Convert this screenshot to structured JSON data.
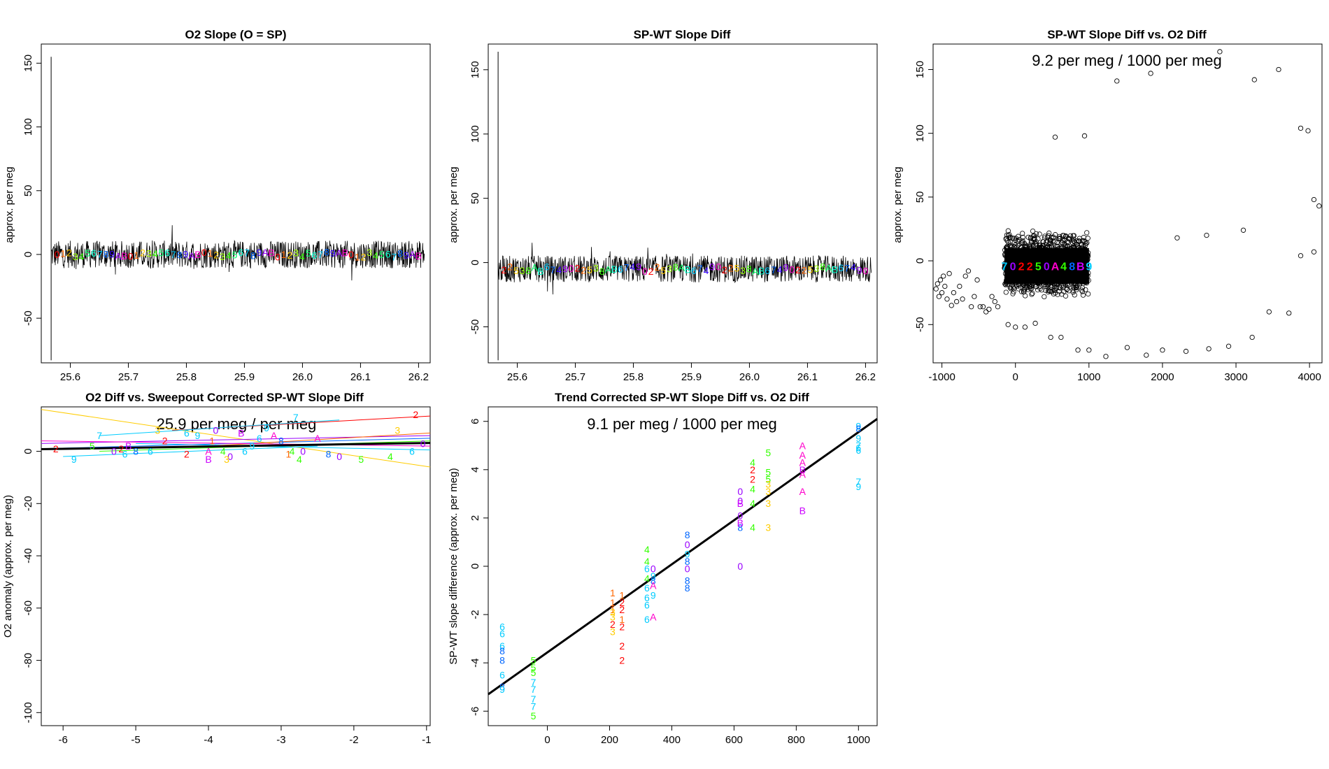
{
  "colors": {
    "palette": [
      "#ff0000",
      "#ff6600",
      "#ffcc00",
      "#99ff00",
      "#33ff00",
      "#00ff66",
      "#00ffcc",
      "#00ccff",
      "#0066ff",
      "#3300ff",
      "#9900ff",
      "#ff00cc"
    ],
    "categoryColors": {
      "0": "#9900ff",
      "1": "#ff6600",
      "2": "#ff0000",
      "3": "#ffcc00",
      "4": "#33ff00",
      "5": "#33ff00",
      "6": "#00ccff",
      "7": "#00ccff",
      "8": "#0066ff",
      "9": "#00ccff",
      "A": "#ff00cc",
      "B": "#cc00ff",
      "L": "#00ff66",
      "M": "#00ff66",
      "N": "#00ff66"
    }
  },
  "chart_data": [
    {
      "id": "p1",
      "type": "line",
      "title": "O2 Slope (O = SP)",
      "ylabel": "approx. per meg",
      "xlim": [
        25.55,
        26.22
      ],
      "ylim": [
        -85,
        165
      ],
      "xticks": [
        25.6,
        25.7,
        25.8,
        25.9,
        26.0,
        26.1,
        26.2
      ],
      "xtick_labels": [
        "25.6",
        "25.7",
        "25.8",
        "25.9",
        "26.0",
        "26.1",
        "26.2"
      ],
      "yticks": [
        -50,
        0,
        50,
        100,
        150
      ],
      "ytick_labels": [
        "-50",
        "0",
        "50",
        "100",
        "150"
      ],
      "spike": {
        "x": 25.567,
        "min": -83,
        "max": 155
      },
      "noise_band": [
        -12,
        15
      ],
      "baseline": 0,
      "marker_labels": [
        "0",
        "1",
        "2",
        "3",
        "4",
        "5",
        "6",
        "7",
        "8",
        "9",
        "A",
        "B"
      ]
    },
    {
      "id": "p2",
      "type": "line",
      "title": "SP-WT Slope Diff",
      "ylabel": "approx. per meg",
      "xlim": [
        25.55,
        26.22
      ],
      "ylim": [
        -78,
        170
      ],
      "xticks": [
        25.6,
        25.7,
        25.8,
        25.9,
        26.0,
        26.1,
        26.2
      ],
      "xtick_labels": [
        "25.6",
        "25.7",
        "25.8",
        "25.9",
        "26.0",
        "26.1",
        "26.2"
      ],
      "yticks": [
        -50,
        0,
        50,
        100,
        150
      ],
      "ytick_labels": [
        "-50",
        "0",
        "50",
        "100",
        "150"
      ],
      "spike": {
        "x": 25.567,
        "min": -76,
        "max": 164
      },
      "noise_band": [
        -18,
        8
      ],
      "baseline": -5,
      "marker_labels": [
        "2",
        "2",
        "5",
        "3",
        "8",
        "A",
        "B",
        "6",
        "7",
        "4",
        "9",
        "0"
      ]
    },
    {
      "id": "p3",
      "type": "scatter",
      "title": "SP-WT Slope Diff vs. O2 Diff",
      "ylabel": "approx. per meg",
      "annotation": "9.2 per meg / 1000 per meg",
      "xlim": [
        -1120,
        4170
      ],
      "ylim": [
        -80,
        170
      ],
      "xticks": [
        -1000,
        0,
        1000,
        2000,
        3000,
        4000
      ],
      "xtick_labels": [
        "-1000",
        "0",
        "1000",
        "2000",
        "3000",
        "4000"
      ],
      "yticks": [
        -50,
        0,
        50,
        100,
        150
      ],
      "ytick_labels": [
        "-50",
        "0",
        "50",
        "100",
        "150"
      ],
      "dense_cluster": {
        "x": [
          -150,
          1000
        ],
        "y": [
          -20,
          15
        ]
      },
      "outliers": [
        [
          -1080,
          -22
        ],
        [
          -1060,
          -18
        ],
        [
          -1040,
          -28
        ],
        [
          -1020,
          -15
        ],
        [
          -1000,
          -25
        ],
        [
          -980,
          -12
        ],
        [
          -960,
          -20
        ],
        [
          -930,
          -30
        ],
        [
          -900,
          -10
        ],
        [
          -870,
          -35
        ],
        [
          -840,
          -25
        ],
        [
          -800,
          -32
        ],
        [
          -760,
          -20
        ],
        [
          -720,
          -30
        ],
        [
          -680,
          -12
        ],
        [
          -640,
          -8
        ],
        [
          -600,
          -36
        ],
        [
          -560,
          -28
        ],
        [
          -520,
          -15
        ],
        [
          -480,
          -36
        ],
        [
          -440,
          -36
        ],
        [
          -400,
          -40
        ],
        [
          -360,
          -38
        ],
        [
          -320,
          -28
        ],
        [
          -280,
          -32
        ],
        [
          -240,
          -36
        ],
        [
          -100,
          -50
        ],
        [
          0,
          -52
        ],
        [
          130,
          -52
        ],
        [
          270,
          -49
        ],
        [
          480,
          -60
        ],
        [
          620,
          -60
        ],
        [
          850,
          -70
        ],
        [
          1000,
          -70
        ],
        [
          1230,
          -75
        ],
        [
          1520,
          -68
        ],
        [
          1780,
          -74
        ],
        [
          2000,
          -70
        ],
        [
          2320,
          -71
        ],
        [
          2630,
          -69
        ],
        [
          2900,
          -67
        ],
        [
          3220,
          -60
        ],
        [
          3450,
          -40
        ],
        [
          3720,
          -41
        ],
        [
          3880,
          4
        ],
        [
          4060,
          7
        ],
        [
          3880,
          104
        ],
        [
          3980,
          102
        ],
        [
          4060,
          48
        ],
        [
          4130,
          43
        ],
        [
          540,
          97
        ],
        [
          940,
          98
        ],
        [
          1380,
          141
        ],
        [
          1840,
          147
        ],
        [
          2780,
          164
        ],
        [
          3250,
          142
        ],
        [
          3580,
          150
        ],
        [
          2200,
          18
        ],
        [
          2600,
          20
        ],
        [
          3100,
          24
        ]
      ],
      "cluster_labels": [
        "7",
        "0",
        "2",
        "2",
        "5",
        "0",
        "A",
        "4",
        "8",
        "B",
        "9"
      ]
    },
    {
      "id": "p4",
      "type": "scatter",
      "title": "O2 Diff vs. Sweepout Corrected SP-WT Slope Diff",
      "ylabel": "O2 anomaly (approx. per meg)",
      "annotation": "25.9 per meg / per meg",
      "xlim": [
        -6.3,
        -0.95
      ],
      "ylim": [
        -105,
        17
      ],
      "xticks": [
        -6,
        -5,
        -4,
        -3,
        -2,
        -1
      ],
      "xtick_labels": [
        "-6",
        "-5",
        "-4",
        "-3",
        "-2",
        "-1"
      ],
      "yticks": [
        -100,
        -80,
        -60,
        -40,
        -20,
        0
      ],
      "ytick_labels": [
        "-100",
        "-80",
        "-60",
        "-40",
        "-20",
        "0"
      ],
      "fit_line": {
        "x": [
          -6.3,
          -0.95
        ],
        "y": [
          0.8,
          3.2
        ]
      },
      "group_lines": [
        {
          "label": "3",
          "x": [
            -6.3,
            -0.95
          ],
          "y": [
            16,
            -6
          ]
        },
        {
          "label": "2",
          "x": [
            -4.5,
            -0.95
          ],
          "y": [
            8,
            13.5
          ]
        },
        {
          "label": "7",
          "x": [
            -5.5,
            -2.2
          ],
          "y": [
            6,
            12
          ]
        },
        {
          "label": "6",
          "x": [
            -5.0,
            -0.95
          ],
          "y": [
            3,
            0.5
          ]
        },
        {
          "label": "0",
          "x": [
            -6.3,
            -0.95
          ],
          "y": [
            3,
            6
          ]
        },
        {
          "label": "8",
          "x": [
            -6.3,
            -0.95
          ],
          "y": [
            1,
            5
          ]
        },
        {
          "label": "1",
          "x": [
            -4.0,
            -0.95
          ],
          "y": [
            2,
            7
          ]
        },
        {
          "label": "A",
          "x": [
            -6.3,
            -0.95
          ],
          "y": [
            4,
            2
          ]
        },
        {
          "label": "9",
          "x": [
            -6.0,
            -2.5
          ],
          "y": [
            -2,
            2
          ]
        },
        {
          "label": "4",
          "x": [
            -5.5,
            -0.95
          ],
          "y": [
            0,
            4
          ]
        }
      ],
      "points": [
        [
          "2",
          -6.1,
          1
        ],
        [
          "5",
          -5.6,
          2
        ],
        [
          "7",
          -5.5,
          6
        ],
        [
          "9",
          -5.85,
          -3
        ],
        [
          "0",
          -5.3,
          0
        ],
        [
          "2",
          -5.2,
          1
        ],
        [
          "6",
          -5.15,
          -1
        ],
        [
          "B",
          -5.1,
          2
        ],
        [
          "8",
          -5,
          0
        ],
        [
          "6",
          -4.8,
          0
        ],
        [
          "2",
          -4.6,
          4
        ],
        [
          "3",
          -4.7,
          8
        ],
        [
          "6",
          -4.3,
          7
        ],
        [
          "9",
          -4.15,
          6
        ],
        [
          "0",
          -3.9,
          8
        ],
        [
          "2",
          -4.3,
          -1
        ],
        [
          "A",
          -4,
          0
        ],
        [
          "1",
          -3.95,
          4
        ],
        [
          "4",
          -3.8,
          0
        ],
        [
          "B",
          -4,
          -3
        ],
        [
          "0",
          -3.7,
          -2
        ],
        [
          "B",
          -3.55,
          7
        ],
        [
          "9",
          -3.4,
          2
        ],
        [
          "6",
          -3.3,
          5
        ],
        [
          "9",
          -3.2,
          9
        ],
        [
          "A",
          -3.1,
          6
        ],
        [
          "8",
          -3,
          4
        ],
        [
          "1",
          -2.9,
          -1
        ],
        [
          "7",
          -2.8,
          13
        ],
        [
          "4",
          -2.85,
          0
        ],
        [
          "0",
          -2.7,
          0
        ],
        [
          "A",
          -2.5,
          5
        ],
        [
          "8",
          -2.35,
          -1
        ],
        [
          "0",
          -2.2,
          -2
        ],
        [
          "5",
          -1.9,
          -3
        ],
        [
          "4",
          -1.5,
          -2
        ],
        [
          "3",
          -1.4,
          8
        ],
        [
          "6",
          -1.2,
          0
        ],
        [
          "2",
          -1.15,
          14
        ],
        [
          "0",
          -1.05,
          3
        ],
        [
          "6",
          -3.5,
          0
        ],
        [
          "3",
          -3.75,
          -3
        ],
        [
          "4",
          -2.75,
          -3
        ]
      ]
    },
    {
      "id": "p5",
      "type": "scatter",
      "title": "Trend Corrected SP-WT Slope Diff vs. O2 Diff",
      "ylabel": "SP-WT slope difference (approx. per meg)",
      "annotation": "9.1 per meg / 1000 per meg",
      "xlim": [
        -190,
        1060
      ],
      "ylim": [
        -6.6,
        6.6
      ],
      "xticks": [
        0,
        200,
        400,
        600,
        800,
        1000
      ],
      "xtick_labels": [
        "0",
        "200",
        "400",
        "600",
        "800",
        "1000"
      ],
      "yticks": [
        -6,
        -4,
        -2,
        0,
        2,
        4,
        6
      ],
      "ytick_labels": [
        "-6",
        "-4",
        "-2",
        "0",
        "2",
        "4",
        "6"
      ],
      "fit_line": {
        "x": [
          -190,
          1060
        ],
        "y": [
          -5.3,
          6.1
        ]
      },
      "points": [
        [
          "6",
          -145,
          -2.5
        ],
        [
          "6",
          -145,
          -2.8
        ],
        [
          "6",
          -145,
          -3.3
        ],
        [
          "8",
          -145,
          -3.5
        ],
        [
          "8",
          -145,
          -3.9
        ],
        [
          "6",
          -145,
          -4.5
        ],
        [
          "8",
          -145,
          -5.0
        ],
        [
          "9",
          -145,
          -5.1
        ],
        [
          "5",
          -45,
          -3.9
        ],
        [
          "5",
          -45,
          -4.2
        ],
        [
          "5",
          -45,
          -4.4
        ],
        [
          "7",
          -45,
          -4.8
        ],
        [
          "7",
          -45,
          -5.1
        ],
        [
          "7",
          -45,
          -5.5
        ],
        [
          "7",
          -45,
          -5.8
        ],
        [
          "5",
          -45,
          -6.2
        ],
        [
          "1",
          210,
          -1.8
        ],
        [
          "1",
          210,
          -1.5
        ],
        [
          "3",
          210,
          -1.9
        ],
        [
          "3",
          210,
          -2.1
        ],
        [
          "2",
          210,
          -2.4
        ],
        [
          "3",
          210,
          -2.7
        ],
        [
          "1",
          210,
          -1.1
        ],
        [
          "1",
          240,
          -1.2
        ],
        [
          "2",
          240,
          -1.5
        ],
        [
          "2",
          240,
          -1.8
        ],
        [
          "1",
          240,
          -2.2
        ],
        [
          "2",
          240,
          -2.5
        ],
        [
          "2",
          240,
          -3.3
        ],
        [
          "2",
          240,
          -3.9
        ],
        [
          "4",
          320,
          0.7
        ],
        [
          "4",
          320,
          0.2
        ],
        [
          "6",
          320,
          -0.1
        ],
        [
          "4",
          320,
          -0.5
        ],
        [
          "6",
          320,
          -0.9
        ],
        [
          "6",
          320,
          -1.3
        ],
        [
          "6",
          320,
          -1.6
        ],
        [
          "6",
          320,
          -2.2
        ],
        [
          "0",
          340,
          -0.1
        ],
        [
          "9",
          340,
          -0.4
        ],
        [
          "8",
          340,
          -0.6
        ],
        [
          "A",
          340,
          -0.8
        ],
        [
          "9",
          340,
          -1.2
        ],
        [
          "A",
          340,
          -2.1
        ],
        [
          "8",
          450,
          1.3
        ],
        [
          "0",
          450,
          0.9
        ],
        [
          "9",
          450,
          0.5
        ],
        [
          "8",
          450,
          0.2
        ],
        [
          "0",
          450,
          -0.1
        ],
        [
          "8",
          450,
          -0.6
        ],
        [
          "8",
          450,
          -0.9
        ],
        [
          "0",
          620,
          2.7
        ],
        [
          "B",
          620,
          2.6
        ],
        [
          "0",
          620,
          2.1
        ],
        [
          "8",
          620,
          1.6
        ],
        [
          "B",
          620,
          1.8
        ],
        [
          "0",
          620,
          0
        ],
        [
          "0",
          620,
          3.1
        ],
        [
          "4",
          660,
          4.3
        ],
        [
          "2",
          660,
          4.0
        ],
        [
          "2",
          660,
          3.6
        ],
        [
          "4",
          660,
          3.2
        ],
        [
          "4",
          660,
          2.6
        ],
        [
          "4",
          660,
          1.6
        ],
        [
          "5",
          710,
          4.7
        ],
        [
          "5",
          710,
          3.9
        ],
        [
          "5",
          710,
          3.6
        ],
        [
          "3",
          710,
          3.4
        ],
        [
          "3",
          710,
          3.1
        ],
        [
          "3",
          710,
          2.6
        ],
        [
          "3",
          710,
          1.6
        ],
        [
          "A",
          820,
          5.0
        ],
        [
          "A",
          820,
          4.6
        ],
        [
          "A",
          820,
          4.3
        ],
        [
          "B",
          820,
          4.0
        ],
        [
          "A",
          820,
          3.8
        ],
        [
          "A",
          820,
          3.1
        ],
        [
          "B",
          820,
          2.3
        ],
        [
          "9",
          1000,
          5.8
        ],
        [
          "9",
          1000,
          5.3
        ],
        [
          "7",
          1000,
          5.0
        ],
        [
          "6",
          1000,
          4.8
        ],
        [
          "9",
          1000,
          3.3
        ],
        [
          "7",
          1000,
          3.5
        ],
        [
          "8",
          1000,
          5.7
        ],
        [
          "6",
          1000,
          4.9
        ]
      ]
    }
  ]
}
